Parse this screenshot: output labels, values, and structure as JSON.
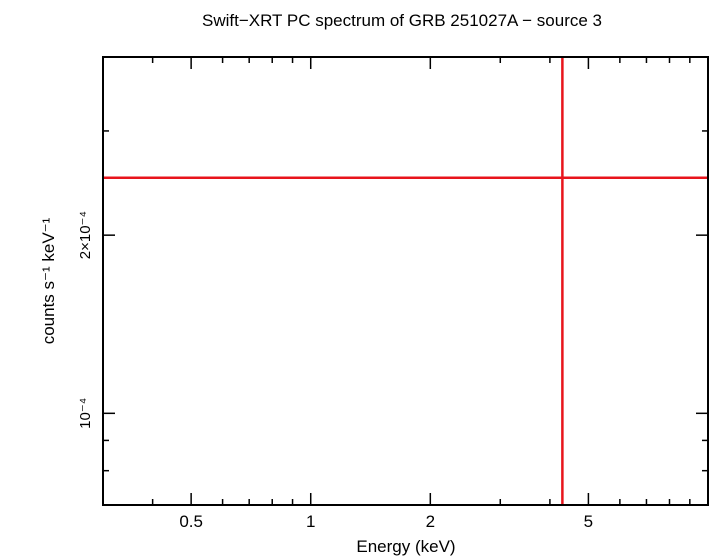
{
  "chart_data": {
    "type": "scatter",
    "title": "Swift−XRT PC spectrum of GRB 251027A − source 3",
    "xlabel": "Energy (keV)",
    "ylabel": "counts s⁻¹ keV⁻¹",
    "x_scale": "log",
    "y_scale": "log",
    "xlim": [
      0.3,
      10
    ],
    "ylim": [
      7e-05,
      0.0004
    ],
    "x_tick_labels": [
      {
        "value": 0.5,
        "label": "0.5"
      },
      {
        "value": 1,
        "label": "1"
      },
      {
        "value": 2,
        "label": "2"
      },
      {
        "value": 5,
        "label": "5"
      }
    ],
    "y_tick_labels": [
      {
        "value": 0.0001,
        "label": "10⁻⁴"
      },
      {
        "value": 0.0002,
        "label": "2×10⁻⁴"
      }
    ],
    "series": [
      {
        "color": "#e8141c",
        "points": [
          {
            "x": 4.3,
            "y": 0.00025,
            "xerr": [
              0.3,
              10
            ],
            "yerr": [
              7e-05,
              0.0004
            ]
          }
        ]
      }
    ],
    "grid": false,
    "legend": "none"
  }
}
